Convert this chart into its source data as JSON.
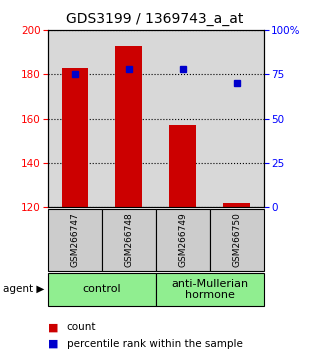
{
  "title": "GDS3199 / 1369743_a_at",
  "samples": [
    "GSM266747",
    "GSM266748",
    "GSM266749",
    "GSM266750"
  ],
  "counts": [
    183,
    193,
    157,
    122
  ],
  "percentiles": [
    75,
    78,
    78,
    70
  ],
  "bar_color": "#CC0000",
  "marker_color": "#0000CC",
  "ylim_left": [
    120,
    200
  ],
  "ylim_right": [
    0,
    100
  ],
  "yticks_left": [
    120,
    140,
    160,
    180,
    200
  ],
  "yticks_right": [
    0,
    25,
    50,
    75,
    100
  ],
  "ytick_labels_right": [
    "0",
    "25",
    "50",
    "75",
    "100%"
  ],
  "groups": [
    {
      "label": "control",
      "samples": [
        0,
        1
      ],
      "color": "#90EE90"
    },
    {
      "label": "anti-Mullerian\nhormone",
      "samples": [
        2,
        3
      ],
      "color": "#90EE90"
    }
  ],
  "group_label_left": "agent",
  "legend_count_label": "count",
  "legend_pct_label": "percentile rank within the sample",
  "bar_width": 0.5,
  "background_color": "#ffffff",
  "plot_bg_color": "#d8d8d8",
  "title_fontsize": 10,
  "tick_fontsize": 7.5,
  "sample_fontsize": 6.5,
  "group_fontsize": 8
}
